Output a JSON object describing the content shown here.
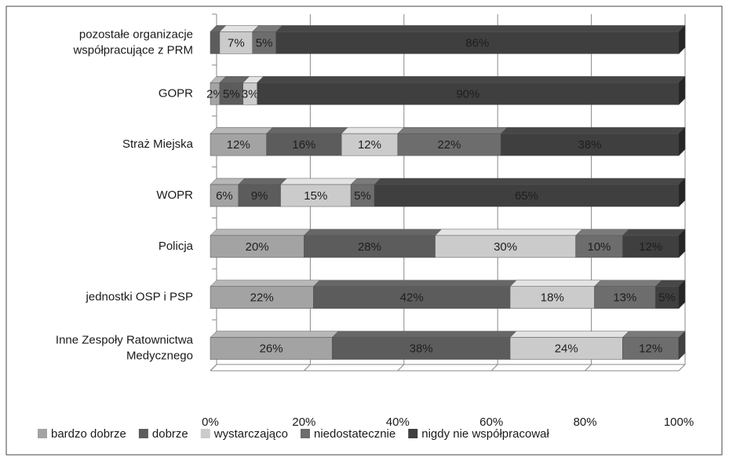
{
  "chart_data": {
    "type": "stacked_bar_horizontal",
    "categories": [
      [
        "pozostałe organizacje",
        "współpracujące z PRM"
      ],
      [
        "GOPR"
      ],
      [
        "Straż Miejska"
      ],
      [
        "WOPR"
      ],
      [
        "Policja"
      ],
      [
        "jednostki OSP i PSP"
      ],
      [
        "Inne Zespoły Ratownictwa",
        "Medycznego"
      ]
    ],
    "series": [
      {
        "name": "bardzo dobrze",
        "color": "#a3a3a3",
        "values": [
          0,
          2,
          12,
          6,
          20,
          22,
          26
        ],
        "value_labels": [
          null,
          "2%",
          "12%",
          "6%",
          "20%",
          "22%",
          "26%"
        ]
      },
      {
        "name": "dobrze",
        "color": "#5c5c5c",
        "values": [
          2,
          5,
          16,
          9,
          28,
          42,
          38
        ],
        "value_labels": [
          null,
          "5%",
          "16%",
          "9%",
          "28%",
          "42%",
          "38%"
        ]
      },
      {
        "name": "wystarczająco",
        "color": "#cbcbcb",
        "values": [
          7,
          3,
          12,
          15,
          30,
          18,
          24
        ],
        "value_labels": [
          "7%",
          "3%",
          "12%",
          "15%",
          "30%",
          "18%",
          "24%"
        ]
      },
      {
        "name": "niedostatecznie",
        "color": "#6d6d6d",
        "values": [
          5,
          0,
          22,
          5,
          10,
          13,
          12
        ],
        "value_labels": [
          "5%",
          null,
          "22%",
          "5%",
          "10%",
          "13%",
          "12%"
        ]
      },
      {
        "name": "nigdy nie współpracował",
        "color": "#3f3f3f",
        "values": [
          86,
          90,
          38,
          65,
          12,
          5,
          0
        ],
        "value_labels": [
          "86%",
          "90%",
          "38%",
          "65%",
          "12%",
          "5%",
          null
        ]
      }
    ],
    "xlim": [
      0,
      100
    ],
    "xticks": [
      {
        "value": 0,
        "label": "0%"
      },
      {
        "value": 20,
        "label": "20%"
      },
      {
        "value": 40,
        "label": "40%"
      },
      {
        "value": 60,
        "label": "60%"
      },
      {
        "value": 80,
        "label": "80%"
      },
      {
        "value": 100,
        "label": "100%"
      }
    ],
    "grid": true,
    "legend": "bottom"
  }
}
